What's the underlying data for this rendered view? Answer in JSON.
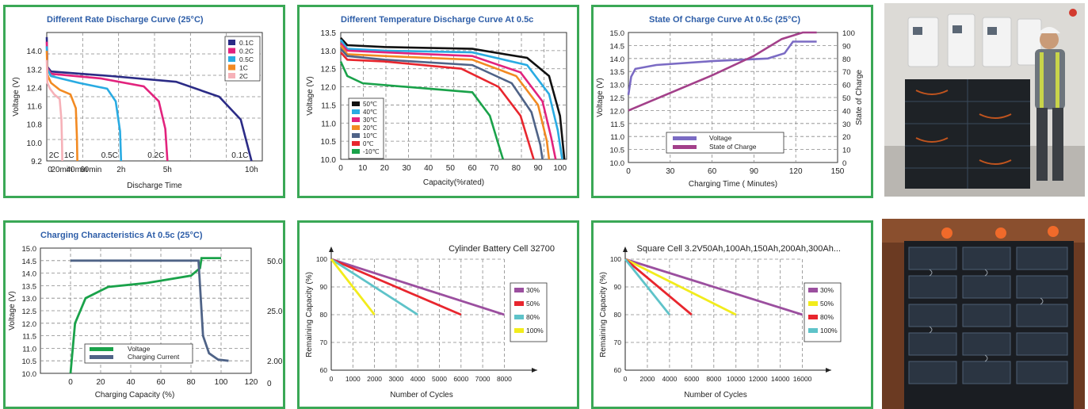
{
  "chart_data": [
    {
      "type": "line",
      "title": "Different Rate Discharge Curve (25°C)",
      "xlabel": "Discharge Time",
      "ylabel": "Voltage (V)",
      "ylim": [
        9.2,
        14.8
      ],
      "yticks": [
        "9.2",
        "10.0",
        "10.8",
        "11.6",
        "12.4",
        "13.2",
        "14.0"
      ],
      "xticks": [
        "0",
        "20min",
        "40min",
        "60min",
        "2h",
        "5h",
        "10h"
      ],
      "legend": "top-right",
      "series": [
        {
          "name": "0.1C",
          "color": "#2b2b86",
          "end_label": "0.1C",
          "points": [
            [
              0,
              14.6
            ],
            [
              0.3,
              13.3
            ],
            [
              2,
              13.1
            ],
            [
              30,
              12.9
            ],
            [
              60,
              12.65
            ],
            [
              80,
              12.0
            ],
            [
              90,
              11.0
            ],
            [
              95,
              9.2
            ]
          ]
        },
        {
          "name": "0.2C",
          "color": "#e2237d",
          "end_label": "0.2C",
          "points": [
            [
              0,
              14.4
            ],
            [
              0.3,
              13.25
            ],
            [
              2,
              13.0
            ],
            [
              25,
              12.8
            ],
            [
              45,
              12.45
            ],
            [
              52,
              11.8
            ],
            [
              55,
              10.6
            ],
            [
              56,
              9.2
            ]
          ]
        },
        {
          "name": "0.5C",
          "color": "#29abe2",
          "end_label": "0.5C",
          "points": [
            [
              0,
              14.2
            ],
            [
              0.3,
              13.2
            ],
            [
              2,
              12.9
            ],
            [
              15,
              12.6
            ],
            [
              28,
              12.35
            ],
            [
              32,
              11.8
            ],
            [
              34,
              10.5
            ],
            [
              34.5,
              9.2
            ]
          ]
        },
        {
          "name": "1C",
          "color": "#f28a22",
          "end_label": "1C",
          "points": [
            [
              0,
              14.0
            ],
            [
              0.3,
              12.95
            ],
            [
              2,
              12.6
            ],
            [
              6,
              12.3
            ],
            [
              11,
              12.1
            ],
            [
              13.5,
              11.5
            ],
            [
              14,
              10.2
            ],
            [
              14.2,
              9.2
            ]
          ]
        },
        {
          "name": "2C",
          "color": "#f6b1b8",
          "end_label": "2C",
          "points": [
            [
              0,
              13.6
            ],
            [
              0.3,
              12.6
            ],
            [
              1.5,
              12.35
            ],
            [
              3.5,
              12.1
            ],
            [
              6,
              11.9
            ],
            [
              6.8,
              11.0
            ],
            [
              7.1,
              9.9
            ],
            [
              7.2,
              9.2
            ]
          ]
        }
      ]
    },
    {
      "type": "line",
      "title": "Different Temperature Discharge Curve At 0.5c",
      "xlabel": "Capacity(%rated)",
      "ylabel": "Voltage (V)",
      "xlim": [
        0,
        103
      ],
      "ylim": [
        10.0,
        13.5
      ],
      "xticks": [
        0,
        10,
        20,
        30,
        40,
        50,
        60,
        70,
        80,
        90,
        100
      ],
      "yticks": [
        "10.0",
        "10.5",
        "11.0",
        "11.5",
        "12.0",
        "12.5",
        "13.0",
        "13.5"
      ],
      "legend": "bottom-left",
      "series": [
        {
          "name": "50℃",
          "color": "#111111",
          "points": [
            [
              0,
              13.35
            ],
            [
              3,
              13.15
            ],
            [
              20,
              13.1
            ],
            [
              60,
              13.05
            ],
            [
              85,
              12.8
            ],
            [
              95,
              12.3
            ],
            [
              100,
              11.2
            ],
            [
              102,
              10.0
            ]
          ]
        },
        {
          "name": "40℃",
          "color": "#29abe2",
          "points": [
            [
              0,
              13.3
            ],
            [
              3,
              13.05
            ],
            [
              20,
              13.0
            ],
            [
              60,
              12.95
            ],
            [
              85,
              12.6
            ],
            [
              95,
              11.8
            ],
            [
              99,
              10.8
            ],
            [
              101,
              10.0
            ]
          ]
        },
        {
          "name": "30℃",
          "color": "#e2237d",
          "points": [
            [
              0,
              13.2
            ],
            [
              3,
              13.0
            ],
            [
              20,
              12.95
            ],
            [
              60,
              12.85
            ],
            [
              82,
              12.4
            ],
            [
              92,
              11.6
            ],
            [
              96,
              10.6
            ],
            [
              98,
              10.0
            ]
          ]
        },
        {
          "name": "20℃",
          "color": "#f28a22",
          "points": [
            [
              0,
              13.15
            ],
            [
              3,
              12.9
            ],
            [
              20,
              12.85
            ],
            [
              60,
              12.75
            ],
            [
              80,
              12.3
            ],
            [
              90,
              11.5
            ],
            [
              94,
              10.5
            ],
            [
              95,
              10.0
            ]
          ]
        },
        {
          "name": "10℃",
          "color": "#4f6387",
          "points": [
            [
              0,
              13.05
            ],
            [
              3,
              12.85
            ],
            [
              20,
              12.75
            ],
            [
              60,
              12.6
            ],
            [
              78,
              12.1
            ],
            [
              87,
              11.3
            ],
            [
              91,
              10.4
            ],
            [
              92,
              10.0
            ]
          ]
        },
        {
          "name": "0℃",
          "color": "#e8262e",
          "points": [
            [
              0,
              12.95
            ],
            [
              3,
              12.75
            ],
            [
              20,
              12.7
            ],
            [
              55,
              12.5
            ],
            [
              72,
              12.0
            ],
            [
              82,
              11.2
            ],
            [
              86,
              10.4
            ],
            [
              88,
              10.0
            ]
          ]
        },
        {
          "name": "-10℃",
          "color": "#1aa24a",
          "points": [
            [
              0,
              12.7
            ],
            [
              3,
              12.3
            ],
            [
              10,
              12.1
            ],
            [
              30,
              12.0
            ],
            [
              60,
              11.85
            ],
            [
              68,
              11.2
            ],
            [
              72,
              10.4
            ],
            [
              74,
              10.0
            ]
          ]
        }
      ]
    },
    {
      "type": "line",
      "title": "State Of Charge Curve At 0.5c (25°C)",
      "xlabel": "Charging Time ( Minutes)",
      "ylabel": "Voltage (V)",
      "ylabel_right": "State of Charge",
      "xlim": [
        0,
        150
      ],
      "ylim": [
        10.0,
        15.0
      ],
      "ylim_right": [
        0,
        100
      ],
      "xticks": [
        0,
        30,
        60,
        90,
        120,
        150
      ],
      "yticks": [
        "10.0",
        "10.5",
        "11.0",
        "11.5",
        "12.0",
        "12.5",
        "13.0",
        "13.5",
        "14.0",
        "14.5",
        "15.0"
      ],
      "yticks_right": [
        0,
        10,
        20,
        30,
        40,
        50,
        60,
        70,
        80,
        90,
        100
      ],
      "legend": "bottom",
      "series": [
        {
          "name": "Voltage",
          "color": "#7b6bc4",
          "axis": "left",
          "points": [
            [
              0,
              12.6
            ],
            [
              2,
              13.3
            ],
            [
              5,
              13.6
            ],
            [
              20,
              13.75
            ],
            [
              60,
              13.9
            ],
            [
              100,
              14.0
            ],
            [
              112,
              14.2
            ],
            [
              118,
              14.65
            ],
            [
              135,
              14.65
            ]
          ]
        },
        {
          "name": "State of Charge",
          "color": "#a3408a",
          "axis": "right",
          "points": [
            [
              0,
              40
            ],
            [
              60,
              67
            ],
            [
              90,
              82
            ],
            [
              110,
              95
            ],
            [
              125,
              100
            ],
            [
              135,
              100
            ]
          ]
        }
      ]
    },
    {
      "type": "line",
      "title": "Charging Characteristics At 0.5c (25°C)",
      "xlabel": "Charging Capacity (%)",
      "ylabel": "Voltage (V)",
      "xlim": [
        -20,
        120
      ],
      "ylim": [
        10.0,
        15.0
      ],
      "xticks": [
        0,
        20,
        40,
        60,
        80,
        100,
        120
      ],
      "yticks": [
        "10.0",
        "10.5",
        "11.0",
        "11.5",
        "12.0",
        "12.5",
        "13.0",
        "13.5",
        "14.0",
        "14.5",
        "15.0"
      ],
      "yticks_right": [
        "0",
        "2.00",
        "25.00",
        "50.00"
      ],
      "legend": "bottom-left",
      "series": [
        {
          "name": "Voltage",
          "color": "#1aa24a",
          "points": [
            [
              0,
              10.0
            ],
            [
              3,
              12.0
            ],
            [
              10,
              13.0
            ],
            [
              25,
              13.45
            ],
            [
              50,
              13.6
            ],
            [
              80,
              13.9
            ],
            [
              86,
              14.2
            ],
            [
              87,
              14.6
            ],
            [
              100,
              14.6
            ]
          ]
        },
        {
          "name": "Charging Current",
          "color": "#4f6387",
          "points": [
            [
              0,
              14.5
            ],
            [
              85,
              14.5
            ],
            [
              86,
              13.5
            ],
            [
              88,
              11.5
            ],
            [
              92,
              10.8
            ],
            [
              98,
              10.55
            ],
            [
              105,
              10.5
            ]
          ]
        }
      ]
    },
    {
      "type": "line",
      "title": "Cylinder Battery Cell 32700",
      "xlabel": "Number of Cycles",
      "ylabel": "Remaining Capacity (%)",
      "xlim": [
        0,
        8000
      ],
      "ylim": [
        60,
        100
      ],
      "xticks": [
        0,
        1000,
        2000,
        3000,
        4000,
        5000,
        6000,
        7000,
        8000
      ],
      "yticks": [
        60,
        70,
        80,
        90,
        100
      ],
      "legend": "right",
      "series": [
        {
          "name": "30%",
          "color": "#9b4f9f",
          "points": [
            [
              0,
              100
            ],
            [
              8000,
              80
            ]
          ]
        },
        {
          "name": "50%",
          "color": "#e8262e",
          "points": [
            [
              0,
              100
            ],
            [
              6000,
              80
            ]
          ]
        },
        {
          "name": "80%",
          "color": "#5ec3c9",
          "points": [
            [
              0,
              100
            ],
            [
              4000,
              80
            ]
          ]
        },
        {
          "name": "100%",
          "color": "#f2ec1c",
          "points": [
            [
              0,
              100
            ],
            [
              2000,
              80
            ]
          ]
        }
      ]
    },
    {
      "type": "line",
      "title": "Square Cell 3.2V50Ah,100Ah,150Ah,200Ah,300Ah...",
      "xlabel": "Number of Cycles",
      "ylabel": "Remaining Capacity (%)",
      "xlim": [
        0,
        16000
      ],
      "ylim": [
        60,
        100
      ],
      "xticks": [
        0,
        2000,
        4000,
        6000,
        8000,
        10000,
        12000,
        14000,
        16000
      ],
      "yticks": [
        60,
        70,
        80,
        90,
        100
      ],
      "legend": "right",
      "series": [
        {
          "name": "30%",
          "color": "#9b4f9f",
          "points": [
            [
              0,
              100
            ],
            [
              16000,
              80
            ]
          ]
        },
        {
          "name": "50%",
          "color": "#f2ec1c",
          "points": [
            [
              0,
              100
            ],
            [
              10000,
              80
            ]
          ]
        },
        {
          "name": "80%",
          "color": "#e8262e",
          "points": [
            [
              0,
              100
            ],
            [
              6000,
              80
            ]
          ]
        },
        {
          "name": "100%",
          "color": "#5ec3c9",
          "points": [
            [
              0,
              100
            ],
            [
              4000,
              80
            ]
          ]
        }
      ]
    }
  ]
}
